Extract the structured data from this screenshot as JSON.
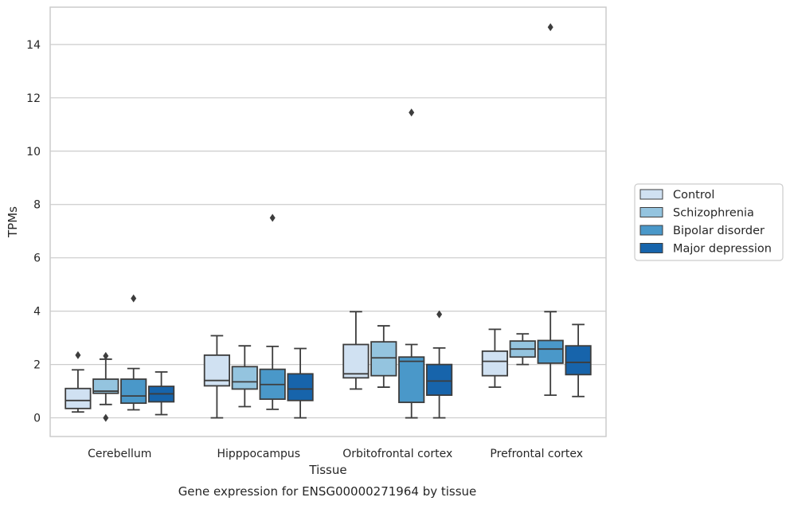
{
  "chart_data": {
    "type": "box",
    "caption": "Gene expression for ENSG00000271964 by tissue",
    "xlabel": "Tissue",
    "ylabel": "TPMs",
    "ylim": [
      -0.7,
      15.4
    ],
    "yticks": [
      0,
      2,
      4,
      6,
      8,
      10,
      12,
      14
    ],
    "grid": "horizontal",
    "legend_position": "right",
    "categories": [
      "Cerebellum",
      "Hipppocampus",
      "Orbitofrontal cortex",
      "Prefrontal cortex"
    ],
    "series": [
      {
        "name": "Control",
        "color": "#d0e1f2",
        "boxes": [
          {
            "whislo": 0.22,
            "q1": 0.35,
            "med": 0.65,
            "q3": 1.1,
            "whishi": 1.8,
            "fliers": [
              2.35
            ]
          },
          {
            "whislo": 0.0,
            "q1": 1.2,
            "med": 1.4,
            "q3": 2.35,
            "whishi": 3.08,
            "fliers": []
          },
          {
            "whislo": 1.08,
            "q1": 1.5,
            "med": 1.65,
            "q3": 2.75,
            "whishi": 3.98,
            "fliers": []
          },
          {
            "whislo": 1.15,
            "q1": 1.58,
            "med": 2.12,
            "q3": 2.5,
            "whishi": 3.32,
            "fliers": []
          }
        ]
      },
      {
        "name": "Schizophrenia",
        "color": "#94c4df",
        "boxes": [
          {
            "whislo": 0.5,
            "q1": 0.92,
            "med": 1.0,
            "q3": 1.45,
            "whishi": 2.2,
            "fliers": [
              2.32,
              0.0
            ]
          },
          {
            "whislo": 0.42,
            "q1": 1.08,
            "med": 1.35,
            "q3": 1.92,
            "whishi": 2.7,
            "fliers": []
          },
          {
            "whislo": 1.15,
            "q1": 1.58,
            "med": 2.25,
            "q3": 2.85,
            "whishi": 3.45,
            "fliers": []
          },
          {
            "whislo": 2.0,
            "q1": 2.28,
            "med": 2.58,
            "q3": 2.88,
            "whishi": 3.15,
            "fliers": []
          }
        ]
      },
      {
        "name": "Bipolar disorder",
        "color": "#4a98c9",
        "boxes": [
          {
            "whislo": 0.3,
            "q1": 0.55,
            "med": 0.82,
            "q3": 1.45,
            "whishi": 1.85,
            "fliers": [
              4.48
            ]
          },
          {
            "whislo": 0.32,
            "q1": 0.7,
            "med": 1.25,
            "q3": 1.82,
            "whishi": 2.68,
            "fliers": [
              7.5
            ]
          },
          {
            "whislo": 0.0,
            "q1": 0.58,
            "med": 2.12,
            "q3": 2.28,
            "whishi": 2.75,
            "fliers": [
              11.45
            ]
          },
          {
            "whislo": 0.85,
            "q1": 2.05,
            "med": 2.58,
            "q3": 2.9,
            "whishi": 3.98,
            "fliers": [
              14.65
            ]
          }
        ]
      },
      {
        "name": "Major depression",
        "color": "#1764ab",
        "boxes": [
          {
            "whislo": 0.12,
            "q1": 0.6,
            "med": 0.9,
            "q3": 1.18,
            "whishi": 1.72,
            "fliers": []
          },
          {
            "whislo": 0.0,
            "q1": 0.65,
            "med": 1.08,
            "q3": 1.65,
            "whishi": 2.6,
            "fliers": []
          },
          {
            "whislo": 0.0,
            "q1": 0.85,
            "med": 1.38,
            "q3": 2.0,
            "whishi": 2.62,
            "fliers": [
              3.88
            ]
          },
          {
            "whislo": 0.8,
            "q1": 1.62,
            "med": 2.08,
            "q3": 2.7,
            "whishi": 3.5,
            "fliers": []
          }
        ]
      }
    ]
  },
  "colors": {
    "axis_frame": "#cccccc",
    "grid": "#cccccc",
    "box_edge": "#3d3d3d",
    "text": "#262626"
  }
}
